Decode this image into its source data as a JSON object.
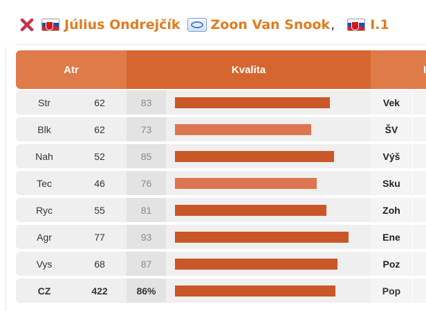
{
  "header": {
    "player_name": "Július Ondrejčík",
    "team_name": "Zoon Van Snook",
    "comma": ",",
    "league": "I.1"
  },
  "table": {
    "col_atr": "Atr",
    "col_kvalita": "Kvalita",
    "col_right_partial": "I",
    "rows": [
      {
        "attr": "Str",
        "value": "62",
        "quality": "83",
        "quality_pct": 83,
        "right": "Vek",
        "highlight": false
      },
      {
        "attr": "Blk",
        "value": "62",
        "quality": "73",
        "quality_pct": 73,
        "right": "ŠV",
        "highlight": true
      },
      {
        "attr": "Nah",
        "value": "52",
        "quality": "85",
        "quality_pct": 85,
        "right": "Výš",
        "highlight": false
      },
      {
        "attr": "Tec",
        "value": "46",
        "quality": "76",
        "quality_pct": 76,
        "right": "Sku",
        "highlight": true
      },
      {
        "attr": "Ryc",
        "value": "55",
        "quality": "81",
        "quality_pct": 81,
        "right": "Zoh",
        "highlight": false
      },
      {
        "attr": "Agr",
        "value": "77",
        "quality": "93",
        "quality_pct": 93,
        "right": "Ene",
        "highlight": false
      },
      {
        "attr": "Vys",
        "value": "68",
        "quality": "87",
        "quality_pct": 87,
        "right": "Poz",
        "highlight": false
      }
    ],
    "total": {
      "attr": "CZ",
      "value": "422",
      "quality": "86%",
      "quality_pct": 86,
      "right": "Pop"
    }
  },
  "colors": {
    "accent": "#e07b1f",
    "header_dark": "#d6662f",
    "header_light": "#df7b48",
    "bar": "#c95727",
    "bar_light": "#dc7650",
    "row_bg": "#efefef"
  },
  "icons": [
    "close-icon",
    "slovakia-flag-icon",
    "team-icon"
  ]
}
